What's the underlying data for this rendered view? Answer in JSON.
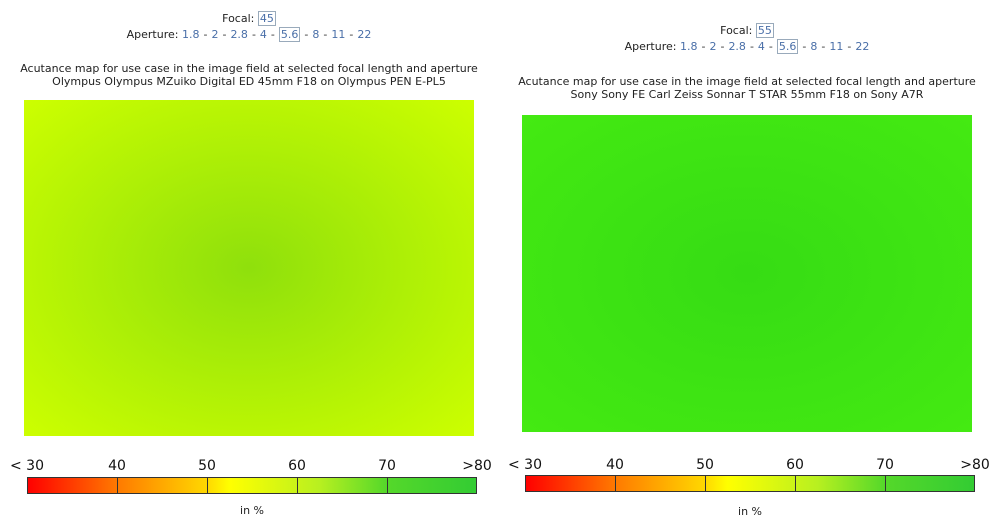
{
  "panels": [
    {
      "focal_label": "Focal:",
      "focal": "45",
      "aperture_label": "Aperture:",
      "apertures": [
        "1.8",
        "2",
        "2.8",
        "4",
        "5.6",
        "8",
        "11",
        "22"
      ],
      "separator": "-",
      "caption": "Acutance map for use case in the image field at selected focal length and aperture",
      "lens": "Olympus Olympus MZuiko Digital ED 45mm F18 on Olympus PEN E-PL5",
      "map_center_color": "#8fe00c",
      "map_edge_color": "#cdff00",
      "scale_labels": [
        "< 30",
        "40",
        "50",
        "60",
        "70",
        ">80"
      ],
      "unit": "in %"
    },
    {
      "focal_label": "Focal:",
      "focal": "55",
      "aperture_label": "Aperture:",
      "apertures": [
        "1.8",
        "2",
        "2.8",
        "4",
        "5.6",
        "8",
        "11",
        "22"
      ],
      "separator": "-",
      "caption": "Acutance map for use case in the image field at selected focal length and aperture",
      "lens": "Sony Sony FE Carl Zeiss Sonnar T STAR 55mm F18 on Sony A7R",
      "map_center_color": "#36dc14",
      "map_edge_color": "#44ea12",
      "scale_labels": [
        "< 30",
        "40",
        "50",
        "60",
        "70",
        ">80"
      ],
      "unit": "in %"
    }
  ]
}
